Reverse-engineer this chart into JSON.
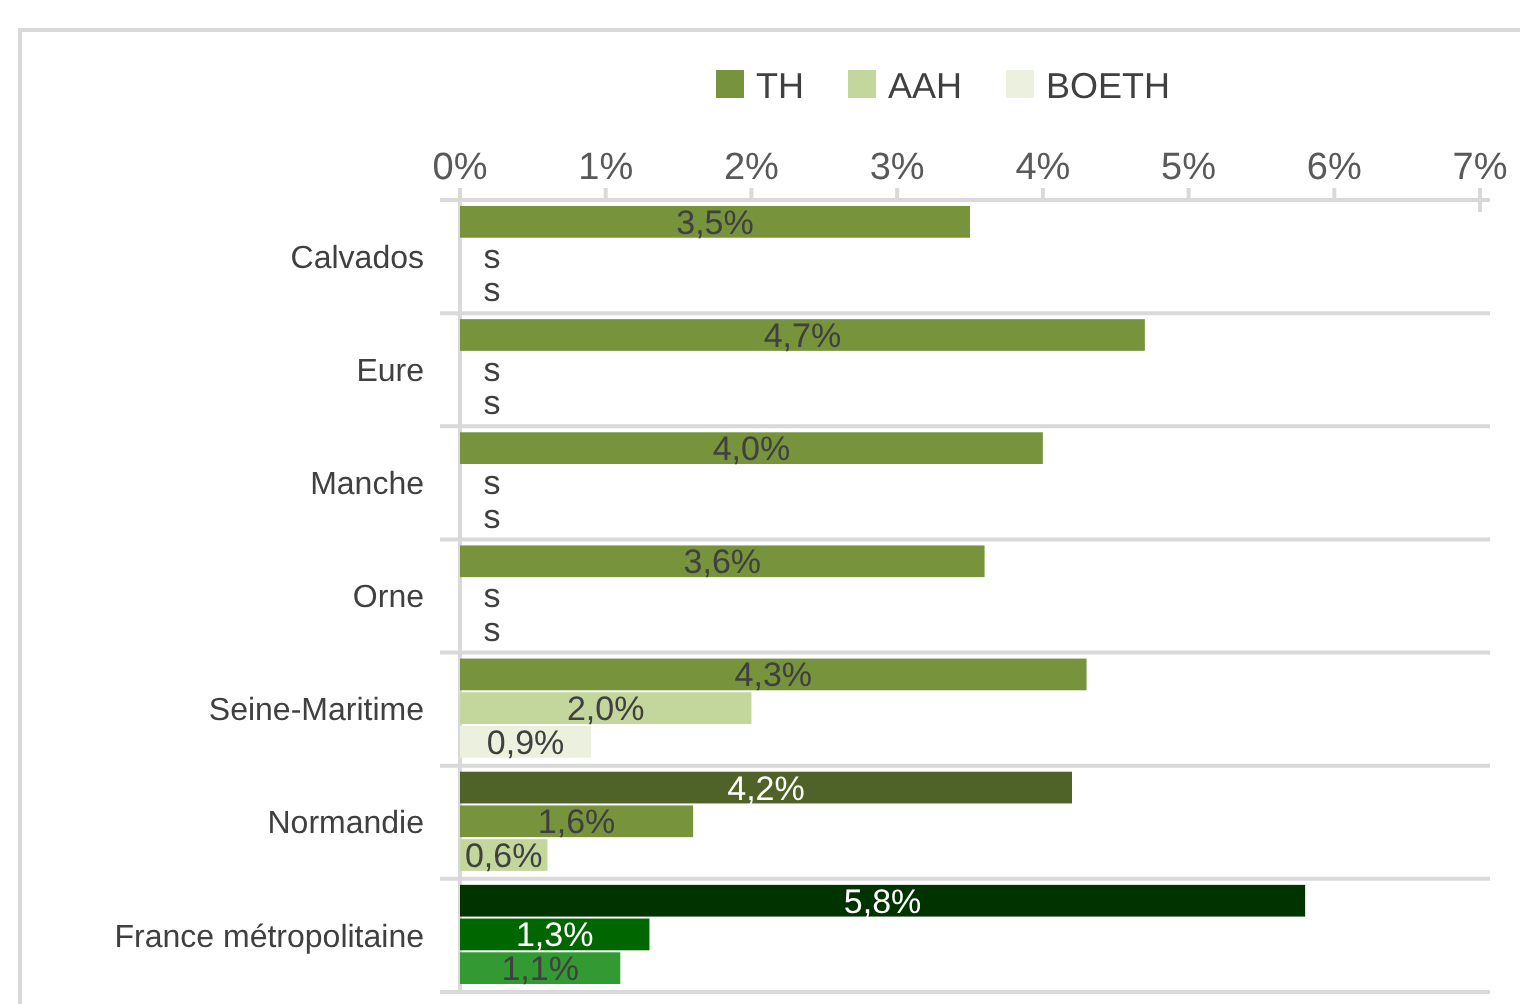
{
  "chart_data": {
    "type": "bar",
    "orientation": "horizontal",
    "categories": [
      "Calvados",
      "Eure",
      "Manche",
      "Orne",
      "Seine-Maritime",
      "Normandie",
      "France métropolitaine"
    ],
    "series": [
      {
        "name": "TH",
        "color": "#77933c",
        "colors": [
          "#77933c",
          "#77933c",
          "#77933c",
          "#77933c",
          "#77933c",
          "#4f6228",
          "#003300"
        ],
        "values": [
          3.5,
          4.7,
          4.0,
          3.6,
          4.3,
          4.2,
          5.8
        ],
        "value_labels": [
          "3,5%",
          "4,7%",
          "4,0%",
          "3,6%",
          "4,3%",
          "4,2%",
          "5,8%"
        ]
      },
      {
        "name": "AAH",
        "color": "#c3d69b",
        "colors": [
          "#c3d69b",
          "#c3d69b",
          "#c3d69b",
          "#c3d69b",
          "#c3d69b",
          "#77933c",
          "#006600"
        ],
        "values": [
          null,
          null,
          null,
          null,
          2.0,
          1.6,
          1.3
        ],
        "value_labels": [
          "s",
          "s",
          "s",
          "s",
          "2,0%",
          "1,6%",
          "1,3%"
        ]
      },
      {
        "name": "BOETH",
        "color": "#ebf1de",
        "colors": [
          "#ebf1de",
          "#ebf1de",
          "#ebf1de",
          "#ebf1de",
          "#ebf1de",
          "#c3d69b",
          "#339933"
        ],
        "values": [
          null,
          null,
          null,
          null,
          0.9,
          0.6,
          1.1
        ],
        "value_labels": [
          "s",
          "s",
          "s",
          "s",
          "0,9%",
          "0,6%",
          "1,1%"
        ]
      }
    ],
    "xlim": [
      0,
      7
    ],
    "xticks": [
      {
        "value": 0,
        "label": "0%"
      },
      {
        "value": 1,
        "label": "1%"
      },
      {
        "value": 2,
        "label": "2%"
      },
      {
        "value": 3,
        "label": "3%"
      },
      {
        "value": 4,
        "label": "4%"
      },
      {
        "value": 5,
        "label": "5%"
      },
      {
        "value": 6,
        "label": "6%"
      },
      {
        "value": 7,
        "label": "7%"
      }
    ],
    "legend": "top"
  }
}
